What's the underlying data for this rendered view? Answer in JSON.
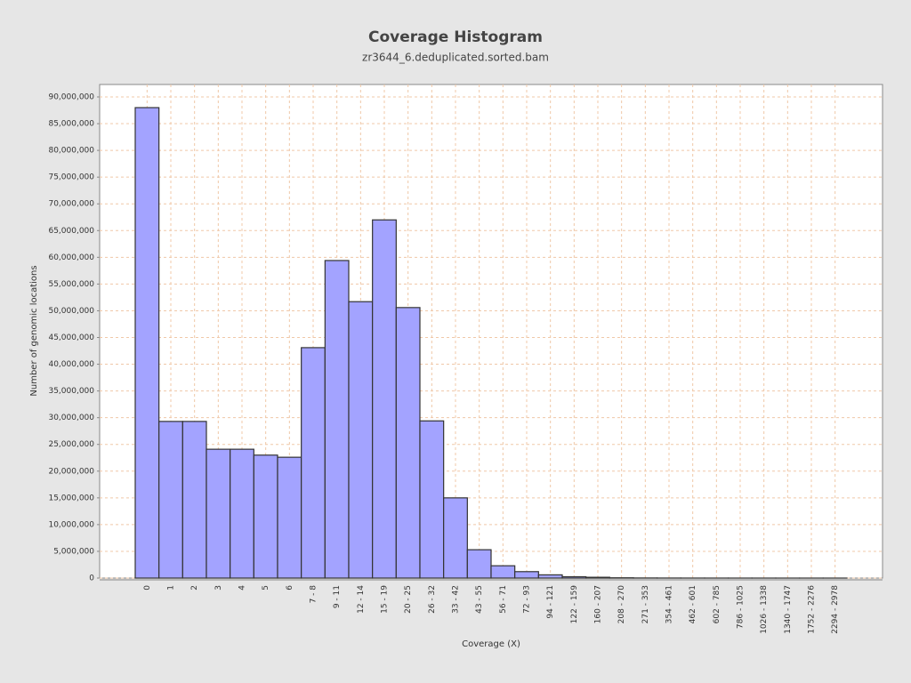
{
  "chart_data": {
    "type": "bar",
    "title": "Coverage Histogram",
    "subtitle": "zr3644_6.deduplicated.sorted.bam",
    "x_label": "Coverage (X)",
    "y_label": "Number of genomic locations",
    "categories": [
      "0",
      "1",
      "2",
      "3",
      "4",
      "5",
      "6",
      "7 - 8",
      "9 - 11",
      "12 - 14",
      "15 - 19",
      "20 - 25",
      "26 - 32",
      "33 - 42",
      "43 - 55",
      "56 - 71",
      "72 - 93",
      "94 - 121",
      "122 - 159",
      "160 - 207",
      "208 - 270",
      "271 - 353",
      "354 - 461",
      "462 - 601",
      "602 - 785",
      "786 - 1025",
      "1026 - 1338",
      "1340 - 1747",
      "1752 - 2276",
      "2294 - 2978"
    ],
    "values": [
      88000000,
      29300000,
      29300000,
      24100000,
      24100000,
      23000000,
      22600000,
      43100000,
      59400000,
      51700000,
      67000000,
      50600000,
      29400000,
      15000000,
      5300000,
      2300000,
      1200000,
      600000,
      250000,
      150000,
      50000,
      20000,
      10000,
      5000,
      3000,
      2000,
      1000,
      500,
      300,
      100
    ],
    "color": "#a3a3ff",
    "ylim": [
      0,
      92330000
    ],
    "yticks": [
      0,
      {
        "value": 5000000,
        "label": "5,000,000"
      },
      {
        "value": 10000000,
        "label": "10,000,000"
      },
      {
        "value": 15000000,
        "label": "15,000,000"
      },
      {
        "value": 20000000,
        "label": "20,000,000"
      },
      {
        "value": 25000000,
        "label": "25,000,000"
      },
      {
        "value": 30000000,
        "label": "30,000,000"
      },
      {
        "value": 35000000,
        "label": "35,000,000"
      },
      {
        "value": 40000000,
        "label": "40,000,000"
      },
      {
        "value": 45000000,
        "label": "45,000,000"
      },
      {
        "value": 50000000,
        "label": "50,000,000"
      },
      {
        "value": 55000000,
        "label": "55,000,000"
      },
      {
        "value": 60000000,
        "label": "60,000,000"
      },
      {
        "value": 65000000,
        "label": "65,000,000"
      },
      {
        "value": 70000000,
        "label": "70,000,000"
      },
      {
        "value": 75000000,
        "label": "75,000,000"
      },
      {
        "value": 80000000,
        "label": "80,000,000"
      },
      {
        "value": 85000000,
        "label": "85,000,000"
      },
      {
        "value": 90000000,
        "label": "90,000,000"
      }
    ],
    "grid": true
  }
}
